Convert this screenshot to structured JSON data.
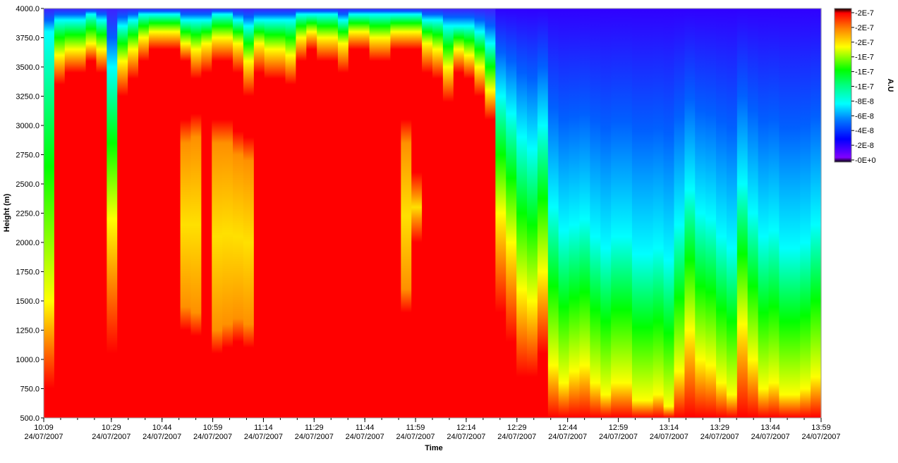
{
  "chart_data": {
    "type": "heatmap",
    "xlabel": "Time",
    "ylabel": "Height (m)",
    "date": "24/07/2007",
    "x_ticks": [
      {
        "time": "10:09",
        "date": "24/07/2007"
      },
      {
        "time": "10:29",
        "date": "24/07/2007"
      },
      {
        "time": "10:44",
        "date": "24/07/2007"
      },
      {
        "time": "10:59",
        "date": "24/07/2007"
      },
      {
        "time": "11:14",
        "date": "24/07/2007"
      },
      {
        "time": "11:29",
        "date": "24/07/2007"
      },
      {
        "time": "11:44",
        "date": "24/07/2007"
      },
      {
        "time": "11:59",
        "date": "24/07/2007"
      },
      {
        "time": "12:14",
        "date": "24/07/2007"
      },
      {
        "time": "12:29",
        "date": "24/07/2007"
      },
      {
        "time": "12:44",
        "date": "24/07/2007"
      },
      {
        "time": "12:59",
        "date": "24/07/2007"
      },
      {
        "time": "13:14",
        "date": "24/07/2007"
      },
      {
        "time": "13:29",
        "date": "24/07/2007"
      },
      {
        "time": "13:44",
        "date": "24/07/2007"
      },
      {
        "time": "13:59",
        "date": "24/07/2007"
      }
    ],
    "x_range": [
      "10:09",
      "13:59"
    ],
    "y_ticks": [
      "500.0",
      "750.0",
      "1000.0",
      "1250.0",
      "1500.0",
      "1750.0",
      "2000.0",
      "2250.0",
      "2500.0",
      "2750.0",
      "3000.0",
      "3250.0",
      "3500.0",
      "3750.0",
      "4000.0"
    ],
    "ylim": [
      500,
      4000
    ],
    "colorbar": {
      "label": "A.U",
      "tick_labels": [
        "2E-7",
        "2E-7",
        "2E-7",
        "1E-7",
        "1E-7",
        "1E-7",
        "8E-8",
        "6E-8",
        "4E-8",
        "2E-8",
        "0E+0"
      ],
      "range": [
        0,
        2e-07
      ],
      "colors": [
        "#000000",
        "#8000ff",
        "#0000ff",
        "#0080ff",
        "#00ffff",
        "#00ff80",
        "#00ff00",
        "#ffff00",
        "#ff8000",
        "#ff0000"
      ]
    },
    "columns": {
      "minutes_interval": 3,
      "start": "10:09",
      "red_top_m": [
        750,
        3350,
        3450,
        3450,
        3550,
        3450,
        1050,
        3250,
        3400,
        3550,
        3650,
        3650,
        3650,
        3550,
        3400,
        3450,
        3550,
        3550,
        3450,
        3250,
        3450,
        3400,
        3400,
        3350,
        3550,
        3650,
        3550,
        3550,
        3450,
        3650,
        3650,
        3550,
        3550,
        3650,
        3650,
        3650,
        3450,
        3400,
        3200,
        3450,
        3400,
        3250,
        3050,
        1400,
        1150,
        850,
        850,
        1050,
        500,
        500,
        500,
        500,
        500,
        500,
        500,
        500,
        500,
        500,
        500,
        500,
        500,
        500,
        500,
        500,
        500,
        500,
        500,
        500,
        500,
        500,
        500,
        500,
        500,
        500
      ],
      "yellow_top_m": [
        1500,
        3600,
        3650,
        3650,
        3700,
        3650,
        2200,
        3550,
        3650,
        3750,
        3800,
        3800,
        3800,
        3700,
        3650,
        3700,
        3750,
        3750,
        3700,
        3550,
        3700,
        3650,
        3650,
        3600,
        3750,
        3800,
        3750,
        3750,
        3700,
        3800,
        3800,
        3750,
        3750,
        3800,
        3800,
        3800,
        3700,
        3650,
        3500,
        3650,
        3600,
        3500,
        3300,
        2250,
        2000,
        1600,
        1500,
        1750,
        950,
        800,
        900,
        950,
        800,
        700,
        800,
        800,
        650,
        650,
        700,
        600,
        900,
        1250,
        1000,
        950,
        800,
        700,
        1300,
        1000,
        750,
        800,
        700,
        700,
        750,
        850
      ],
      "mid_band_red_segments": [
        {
          "col": 13,
          "from": 1300,
          "to": 3000
        },
        {
          "col": 14,
          "from": 1250,
          "to": 3050
        },
        {
          "col": 16,
          "from": 1100,
          "to": 3000
        },
        {
          "col": 17,
          "from": 1150,
          "to": 3000
        },
        {
          "col": 18,
          "from": 1200,
          "to": 2900
        },
        {
          "col": 19,
          "from": 1150,
          "to": 2850
        },
        {
          "col": 34,
          "from": 1450,
          "to": 3000
        },
        {
          "col": 35,
          "from": 2050,
          "to": 2550
        }
      ],
      "cyan_top_m": [
        3800,
        3900,
        3900,
        3900,
        3950,
        3900,
        3500,
        3850,
        3900,
        3950,
        3950,
        3950,
        3950,
        3900,
        3900,
        3900,
        3950,
        3950,
        3900,
        3850,
        3900,
        3900,
        3900,
        3900,
        3950,
        3950,
        3950,
        3950,
        3900,
        3950,
        3950,
        3950,
        3950,
        3950,
        3950,
        3950,
        3900,
        3900,
        3850,
        3850,
        3850,
        3800,
        3700,
        3250,
        3100,
        2900,
        2800,
        3000,
        2300,
        2100,
        2150,
        2200,
        2050,
        1950,
        2050,
        2050,
        1900,
        1900,
        1950,
        1850,
        2150,
        2450,
        2250,
        2200,
        2050,
        1950,
        2500,
        2250,
        2050,
        2100,
        1950,
        1950,
        2000,
        2150
      ]
    }
  }
}
